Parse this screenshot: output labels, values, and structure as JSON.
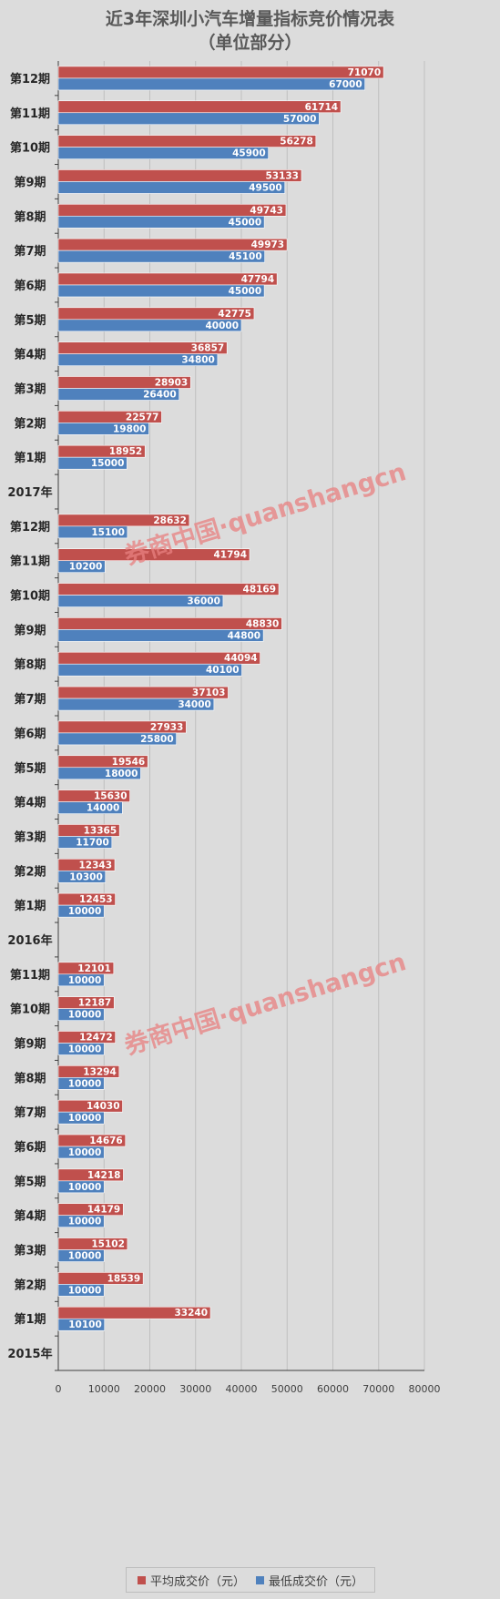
{
  "chart_data": {
    "type": "bar",
    "orientation": "horizontal",
    "title": "近3年深圳小汽车增量指标竞价情况表",
    "subtitle": "（单位部分）",
    "watermark": "券商中国·quanshangcn",
    "xlim": [
      0,
      80000
    ],
    "x_ticks": [
      "0",
      "10000",
      "20000",
      "30000",
      "40000",
      "50000",
      "60000",
      "70000",
      "80000"
    ],
    "grid": true,
    "legend_position": "bottom",
    "colors": {
      "avg": "#c0504d",
      "min": "#4f81bd",
      "background": "#dcdcdc",
      "grid": "#bfbfbf",
      "watermark": "#e88080"
    },
    "categories": [
      "第12期",
      "第11期",
      "第10期",
      "第9期",
      "第8期",
      "第7期",
      "第6期",
      "第5期",
      "第4期",
      "第3期",
      "第2期",
      "第1期",
      "2017年",
      "第12期",
      "第11期",
      "第10期",
      "第9期",
      "第8期",
      "第7期",
      "第6期",
      "第5期",
      "第4期",
      "第3期",
      "第2期",
      "第1期",
      "2016年",
      "第11期",
      "第10期",
      "第9期",
      "第8期",
      "第7期",
      "第6期",
      "第5期",
      "第4期",
      "第3期",
      "第2期",
      "第1期",
      "2015年"
    ],
    "series": [
      {
        "name": "平均成交价（元）",
        "color": "#c0504d",
        "values": [
          71070,
          61714,
          56278,
          53133,
          49743,
          49973,
          47794,
          42775,
          36857,
          28903,
          22577,
          18952,
          null,
          28632,
          41794,
          48169,
          48830,
          44094,
          37103,
          27933,
          19546,
          15630,
          13365,
          12343,
          12453,
          null,
          12101,
          12187,
          12472,
          13294,
          14030,
          14676,
          14218,
          14179,
          15102,
          18539,
          33240,
          null
        ]
      },
      {
        "name": "最低成交价（元）",
        "color": "#4f81bd",
        "values": [
          67000,
          57000,
          45900,
          49500,
          45000,
          45100,
          45000,
          40000,
          34800,
          26400,
          19800,
          15000,
          null,
          15100,
          10200,
          36000,
          44800,
          40100,
          34000,
          25800,
          18000,
          14000,
          11700,
          10300,
          10000,
          null,
          10000,
          10000,
          10000,
          10000,
          10000,
          10000,
          10000,
          10000,
          10000,
          10000,
          10100,
          null
        ]
      }
    ]
  }
}
